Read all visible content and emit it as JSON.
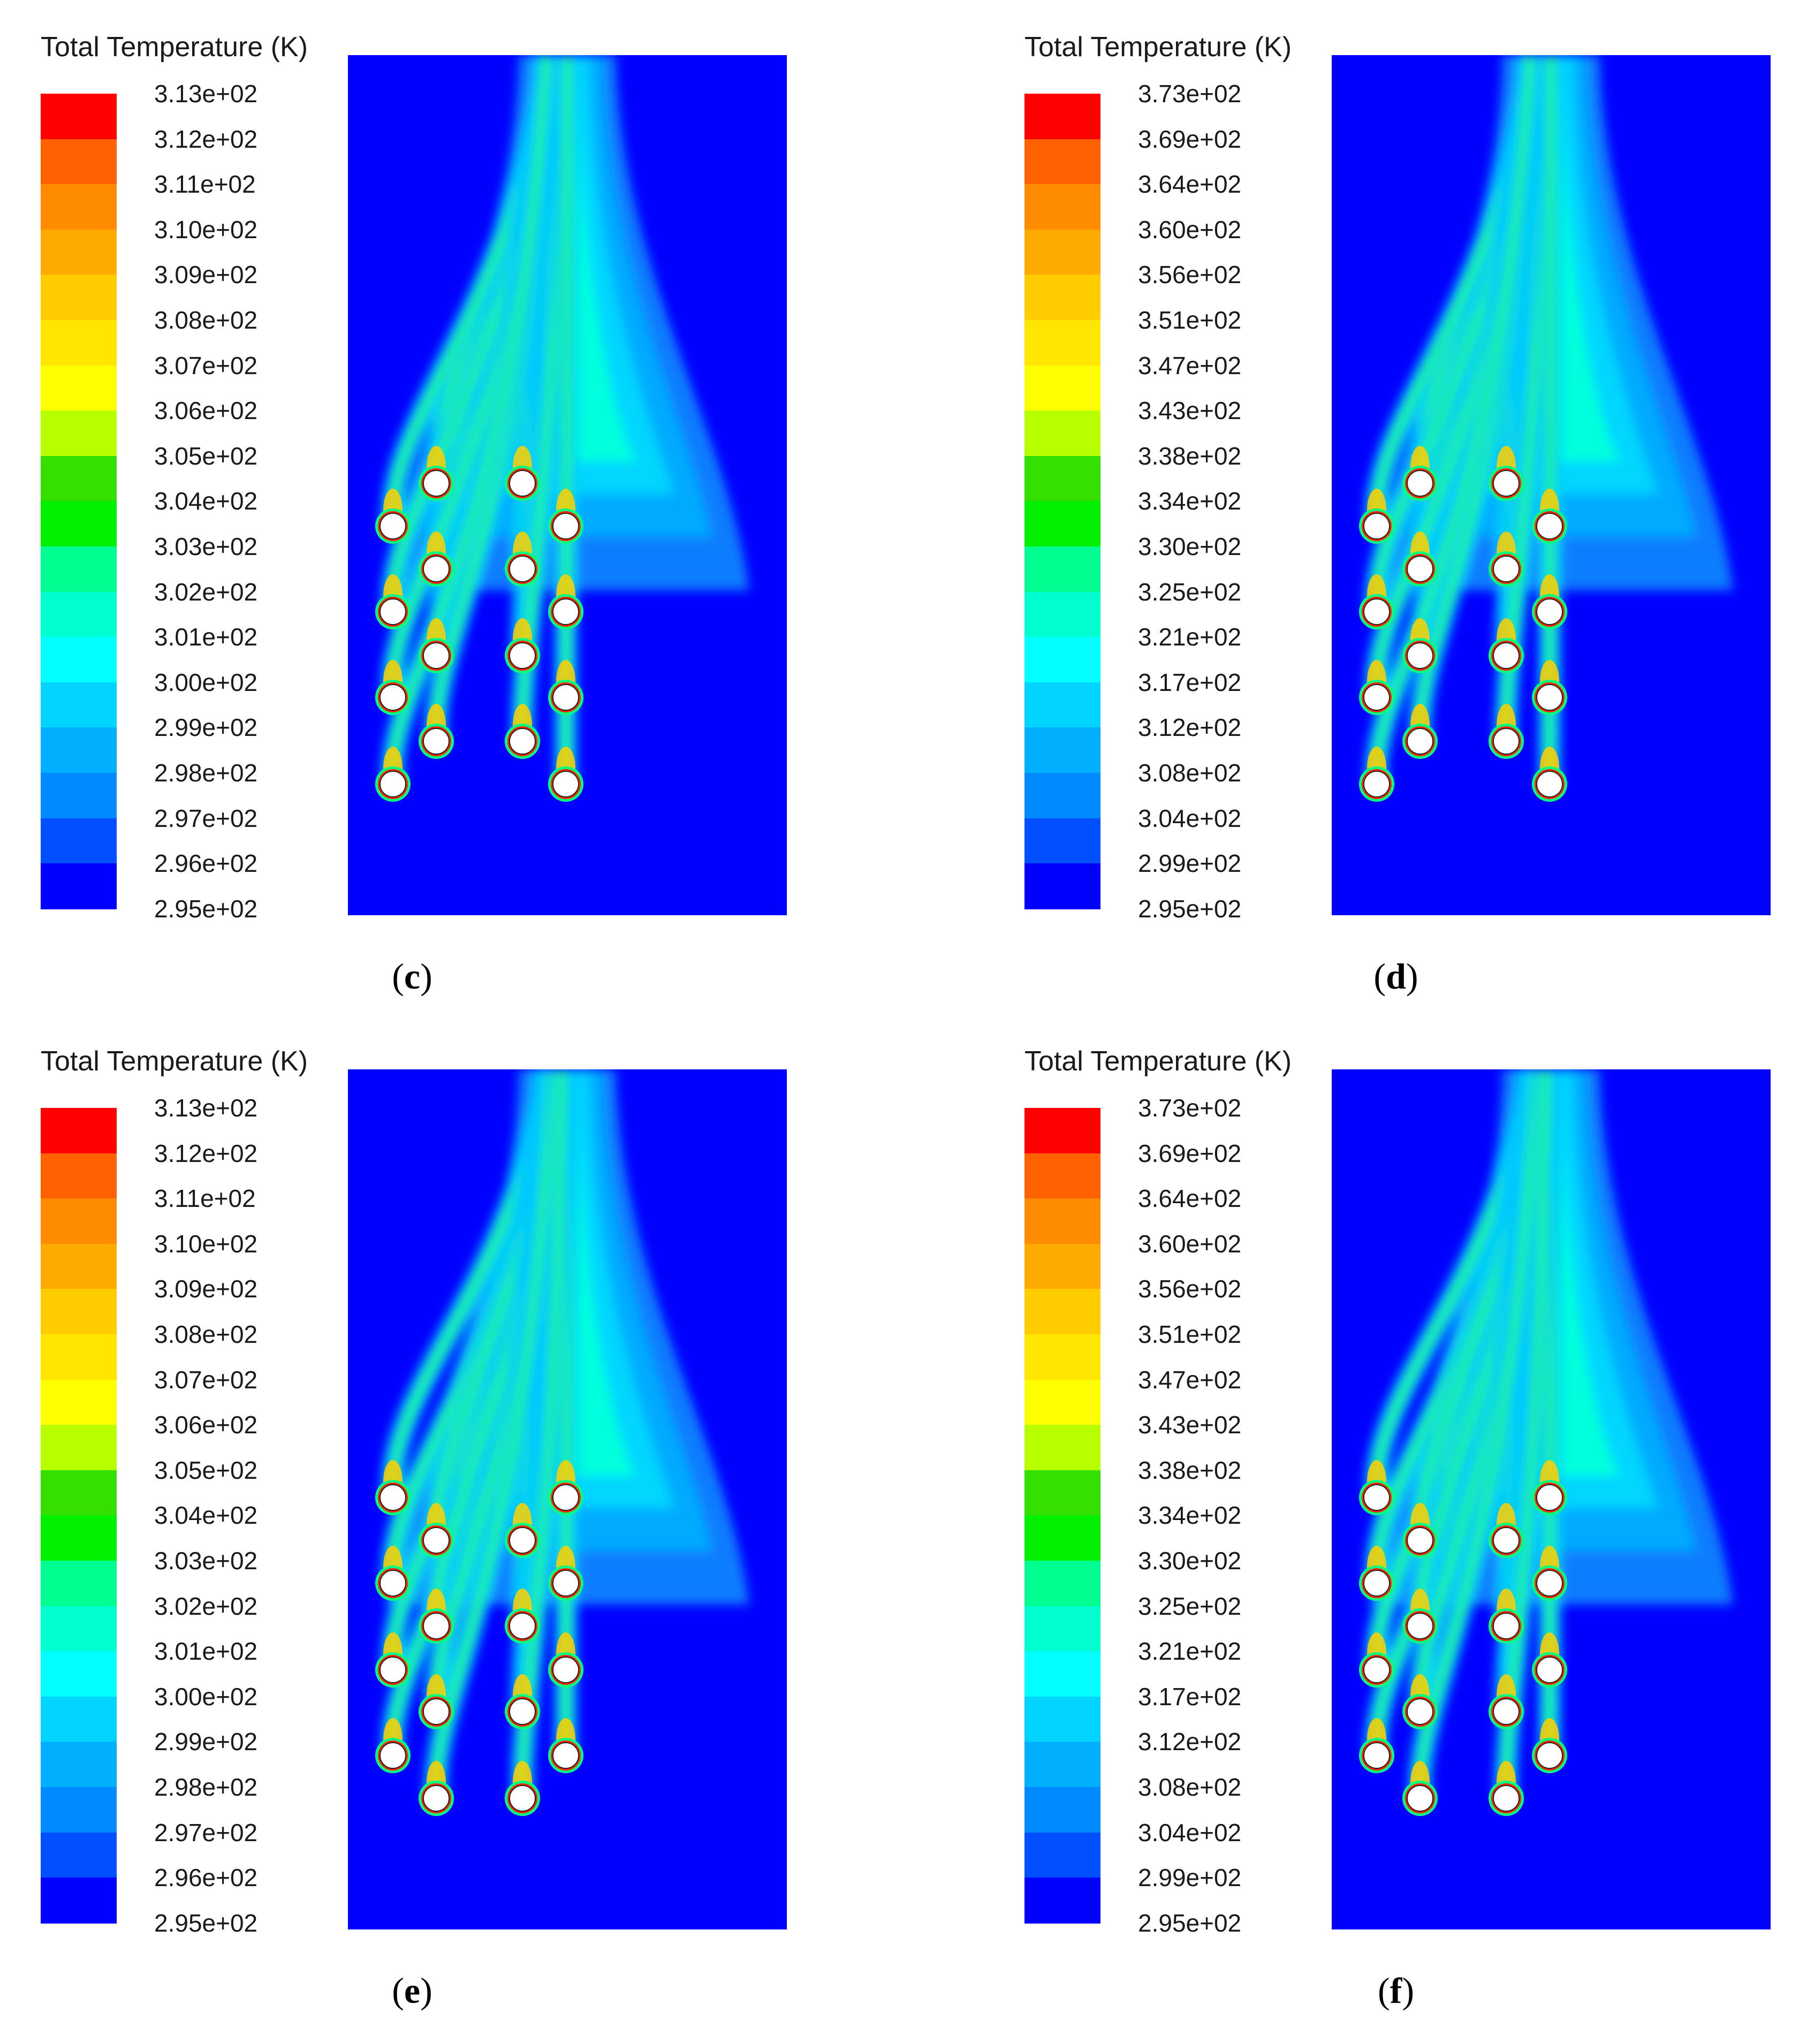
{
  "colors": {
    "background_field": "#0000ff",
    "scale": [
      "#0000ff",
      "#0050ff",
      "#008aff",
      "#00b0ff",
      "#00d4ff",
      "#00ffff",
      "#00ffd0",
      "#00ff90",
      "#00f000",
      "#33e000",
      "#b8ff00",
      "#ffff00",
      "#ffe600",
      "#ffcc00",
      "#ffaa00",
      "#ff8c00",
      "#ff6000",
      "#ff0000"
    ],
    "tube_fill": "#ffffff",
    "tube_ring": "#ff2200"
  },
  "panels": [
    {
      "id": "c",
      "caption": "c",
      "legend_title": "Total Temperature (K)",
      "ticks": [
        "3.13e+02",
        "3.12e+02",
        "3.11e+02",
        "3.10e+02",
        "3.09e+02",
        "3.08e+02",
        "3.07e+02",
        "3.06e+02",
        "3.05e+02",
        "3.04e+02",
        "3.03e+02",
        "3.02e+02",
        "3.01e+02",
        "3.00e+02",
        "2.99e+02",
        "2.98e+02",
        "2.97e+02",
        "2.96e+02",
        "2.95e+02"
      ],
      "tube_layout": "staggered-inline"
    },
    {
      "id": "d",
      "caption": "d",
      "legend_title": "Total Temperature (K)",
      "ticks": [
        "3.73e+02",
        "3.69e+02",
        "3.64e+02",
        "3.60e+02",
        "3.56e+02",
        "3.51e+02",
        "3.47e+02",
        "3.43e+02",
        "3.38e+02",
        "3.34e+02",
        "3.30e+02",
        "3.25e+02",
        "3.21e+02",
        "3.17e+02",
        "3.12e+02",
        "3.08e+02",
        "3.04e+02",
        "2.99e+02",
        "2.95e+02"
      ],
      "tube_layout": "staggered-inline"
    },
    {
      "id": "e",
      "caption": "e",
      "legend_title": "Total Temperature (K)",
      "ticks": [
        "3.13e+02",
        "3.12e+02",
        "3.11e+02",
        "3.10e+02",
        "3.09e+02",
        "3.08e+02",
        "3.07e+02",
        "3.06e+02",
        "3.05e+02",
        "3.04e+02",
        "3.03e+02",
        "3.02e+02",
        "3.01e+02",
        "3.00e+02",
        "2.99e+02",
        "2.98e+02",
        "2.97e+02",
        "2.96e+02",
        "2.95e+02"
      ],
      "tube_layout": "staggered-offset"
    },
    {
      "id": "f",
      "caption": "f",
      "legend_title": "Total Temperature (K)",
      "ticks": [
        "3.73e+02",
        "3.69e+02",
        "3.64e+02",
        "3.60e+02",
        "3.56e+02",
        "3.51e+02",
        "3.47e+02",
        "3.43e+02",
        "3.38e+02",
        "3.34e+02",
        "3.30e+02",
        "3.25e+02",
        "3.21e+02",
        "3.17e+02",
        "3.12e+02",
        "3.08e+02",
        "3.04e+02",
        "2.99e+02",
        "2.95e+02"
      ],
      "tube_layout": "staggered-offset"
    }
  ]
}
